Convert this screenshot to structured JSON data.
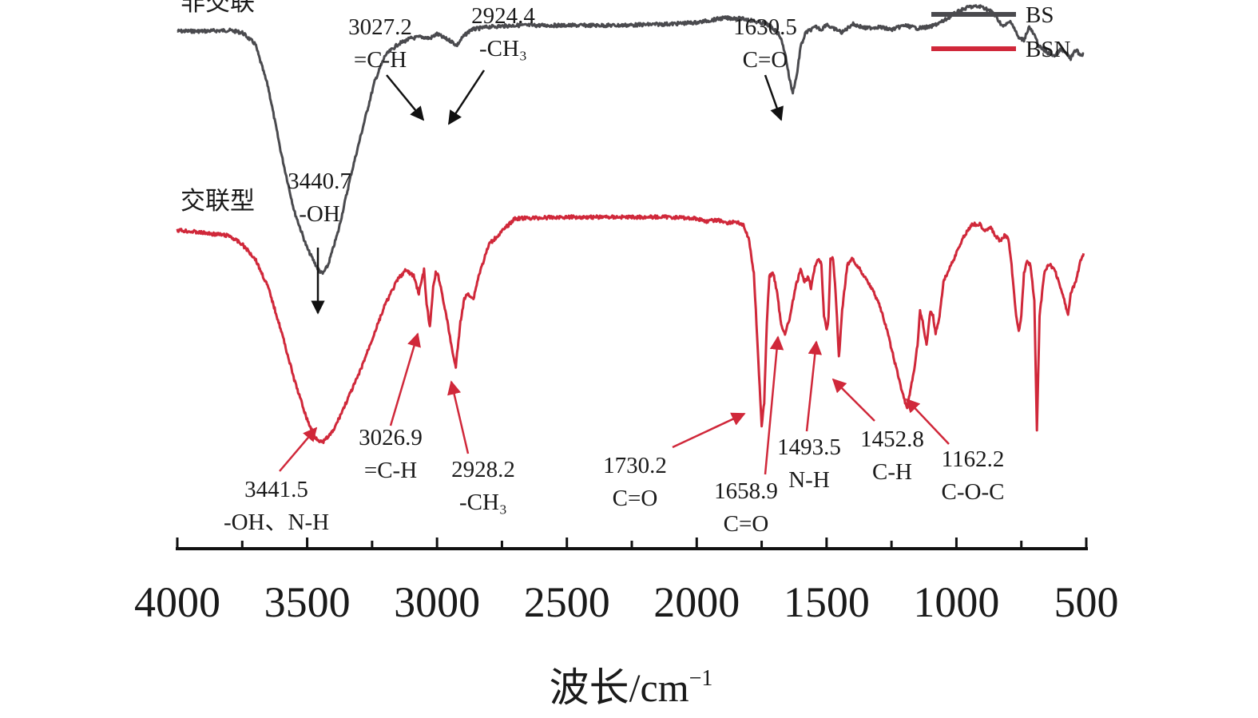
{
  "chart_data": {
    "type": "line",
    "title": "",
    "xlabel": "波长/cm",
    "xlabel_superscript": "−1",
    "ylabel": "",
    "xlim": [
      4000,
      500
    ],
    "x_reversed": true,
    "x_ticks": [
      4000,
      3500,
      3000,
      2500,
      2000,
      1500,
      1000,
      500
    ],
    "x_tick_labels": [
      "4000",
      "3500",
      "3000",
      "2500",
      "2000",
      "1500",
      "1000",
      "500"
    ],
    "grid": false,
    "legend_position": "top-right",
    "colors": {
      "BS": "#4a4a4e",
      "BSN": "#d0283a",
      "annotation_black": "#111111",
      "annotation_red": "#d0283a"
    },
    "series": [
      {
        "name": "BS",
        "group_label": "非交联",
        "offset": 0.62,
        "x": [
          4000,
          3900,
          3800,
          3750,
          3700,
          3650,
          3600,
          3550,
          3500,
          3460,
          3441,
          3420,
          3380,
          3330,
          3280,
          3240,
          3200,
          3150,
          3100,
          3060,
          3027,
          3000,
          2970,
          2945,
          2924,
          2900,
          2870,
          2800,
          2700,
          2500,
          2300,
          2100,
          2000,
          1900,
          1850,
          1800,
          1760,
          1730,
          1700,
          1680,
          1660,
          1645,
          1631,
          1615,
          1600,
          1580,
          1560,
          1540,
          1520,
          1500,
          1480,
          1460,
          1440,
          1400,
          1350,
          1300,
          1250,
          1200,
          1150,
          1100,
          1050,
          1000,
          950,
          900,
          860,
          820,
          790,
          760,
          740,
          720,
          700,
          680,
          650,
          620,
          600,
          580,
          560,
          540,
          520,
          510
        ],
        "values": [
          0.025,
          0.025,
          0.022,
          0.03,
          0.07,
          0.22,
          0.45,
          0.65,
          0.78,
          0.85,
          0.87,
          0.84,
          0.72,
          0.52,
          0.34,
          0.2,
          0.11,
          0.07,
          0.05,
          0.045,
          0.05,
          0.035,
          0.05,
          0.06,
          0.075,
          0.045,
          0.02,
          0.01,
          0.005,
          0.005,
          0.005,
          0.0,
          -0.005,
          -0.02,
          -0.02,
          -0.015,
          -0.005,
          0.0,
          0.02,
          0.04,
          0.1,
          0.18,
          0.24,
          0.18,
          0.08,
          0.03,
          0.02,
          0.01,
          0.02,
          0.0,
          0.015,
          0.02,
          0.03,
          0.0,
          0.015,
          0.01,
          0.02,
          0.005,
          0.015,
          0.01,
          -0.01,
          -0.04,
          -0.06,
          -0.06,
          -0.04,
          0.01,
          -0.01,
          0.05,
          0.055,
          0.01,
          0.04,
          0.08,
          0.1,
          0.11,
          0.09,
          0.1,
          0.12,
          0.09,
          0.11,
          0.1
        ]
      },
      {
        "name": "BSN",
        "group_label": "交联型",
        "offset": 0.0,
        "x": [
          4000,
          3900,
          3800,
          3750,
          3700,
          3650,
          3600,
          3550,
          3500,
          3470,
          3441,
          3400,
          3350,
          3300,
          3250,
          3200,
          3150,
          3120,
          3090,
          3070,
          3050,
          3040,
          3027,
          3015,
          3005,
          2995,
          2985,
          2960,
          2945,
          2928,
          2910,
          2895,
          2880,
          2860,
          2840,
          2800,
          2700,
          2500,
          2300,
          2100,
          2000,
          1960,
          1920,
          1880,
          1850,
          1820,
          1800,
          1780,
          1760,
          1750,
          1740,
          1730,
          1720,
          1705,
          1690,
          1675,
          1659,
          1640,
          1620,
          1600,
          1585,
          1570,
          1560,
          1545,
          1530,
          1520,
          1510,
          1500,
          1493,
          1485,
          1475,
          1465,
          1452,
          1440,
          1420,
          1400,
          1370,
          1340,
          1300,
          1270,
          1240,
          1210,
          1190,
          1175,
          1162,
          1150,
          1140,
          1130,
          1115,
          1100,
          1090,
          1080,
          1065,
          1050,
          1030,
          1000,
          970,
          940,
          910,
          890,
          870,
          850,
          830,
          815,
          800,
          790,
          780,
          770,
          760,
          750,
          740,
          730,
          715,
          700,
          690,
          680,
          660,
          640,
          620,
          600,
          585,
          570,
          560,
          540,
          520,
          510
        ],
        "values": [
          0.0,
          0.01,
          0.02,
          0.05,
          0.1,
          0.2,
          0.35,
          0.52,
          0.66,
          0.72,
          0.74,
          0.7,
          0.6,
          0.5,
          0.38,
          0.26,
          0.17,
          0.14,
          0.16,
          0.22,
          0.14,
          0.26,
          0.34,
          0.2,
          0.15,
          0.16,
          0.2,
          0.32,
          0.4,
          0.48,
          0.32,
          0.24,
          0.22,
          0.24,
          0.16,
          0.05,
          -0.04,
          -0.045,
          -0.045,
          -0.045,
          -0.04,
          -0.03,
          -0.035,
          -0.025,
          -0.03,
          -0.015,
          0.03,
          0.15,
          0.5,
          0.68,
          0.6,
          0.32,
          0.16,
          0.15,
          0.22,
          0.33,
          0.36,
          0.3,
          0.2,
          0.14,
          0.18,
          0.16,
          0.2,
          0.13,
          0.1,
          0.12,
          0.3,
          0.34,
          0.32,
          0.1,
          0.1,
          0.22,
          0.45,
          0.28,
          0.12,
          0.1,
          0.14,
          0.18,
          0.25,
          0.34,
          0.45,
          0.56,
          0.62,
          0.55,
          0.48,
          0.4,
          0.28,
          0.32,
          0.4,
          0.28,
          0.3,
          0.36,
          0.3,
          0.18,
          0.14,
          0.08,
          0.02,
          -0.02,
          -0.02,
          0.0,
          -0.01,
          0.02,
          0.04,
          0.02,
          0.03,
          0.1,
          0.2,
          0.3,
          0.35,
          0.3,
          0.15,
          0.11,
          0.12,
          0.25,
          0.7,
          0.3,
          0.14,
          0.12,
          0.14,
          0.2,
          0.24,
          0.3,
          0.22,
          0.18,
          0.1,
          0.08
        ]
      }
    ],
    "annotations": [
      {
        "id": "bs-3440",
        "series": "BS",
        "peak": 3440.7,
        "lines": [
          "3440.7",
          "-OH"
        ],
        "color": "black"
      },
      {
        "id": "bs-3027",
        "series": "BS",
        "peak": 3027.2,
        "lines": [
          "3027.2",
          "=C-H"
        ],
        "color": "black"
      },
      {
        "id": "bs-2924",
        "series": "BS",
        "peak": 2924.4,
        "lines": [
          "2924.4",
          "-CH₃"
        ],
        "color": "black"
      },
      {
        "id": "bs-1630",
        "series": "BS",
        "peak": 1630.5,
        "lines": [
          "1630.5",
          "C=O"
        ],
        "color": "black"
      },
      {
        "id": "bsn-3441",
        "series": "BSN",
        "peak": 3441.5,
        "lines": [
          "3441.5",
          "-OH、N-H"
        ],
        "color": "red"
      },
      {
        "id": "bsn-3026",
        "series": "BSN",
        "peak": 3026.9,
        "lines": [
          "3026.9",
          "=C-H"
        ],
        "color": "red"
      },
      {
        "id": "bsn-2928",
        "series": "BSN",
        "peak": 2928.2,
        "lines": [
          "2928.2",
          "-CH₃"
        ],
        "color": "red"
      },
      {
        "id": "bsn-1730",
        "series": "BSN",
        "peak": 1730.2,
        "lines": [
          "1730.2",
          "C=O"
        ],
        "color": "red"
      },
      {
        "id": "bsn-1658",
        "series": "BSN",
        "peak": 1658.9,
        "lines": [
          "1658.9",
          "C=O"
        ],
        "color": "red"
      },
      {
        "id": "bsn-1493",
        "series": "BSN",
        "peak": 1493.5,
        "lines": [
          "1493.5",
          "N-H"
        ],
        "color": "red"
      },
      {
        "id": "bsn-1452",
        "series": "BSN",
        "peak": 1452.8,
        "lines": [
          "1452.8",
          "C-H"
        ],
        "color": "red"
      },
      {
        "id": "bsn-1162",
        "series": "BSN",
        "peak": 1162.2,
        "lines": [
          "1162.2",
          "C-O-C"
        ],
        "color": "red"
      }
    ]
  }
}
